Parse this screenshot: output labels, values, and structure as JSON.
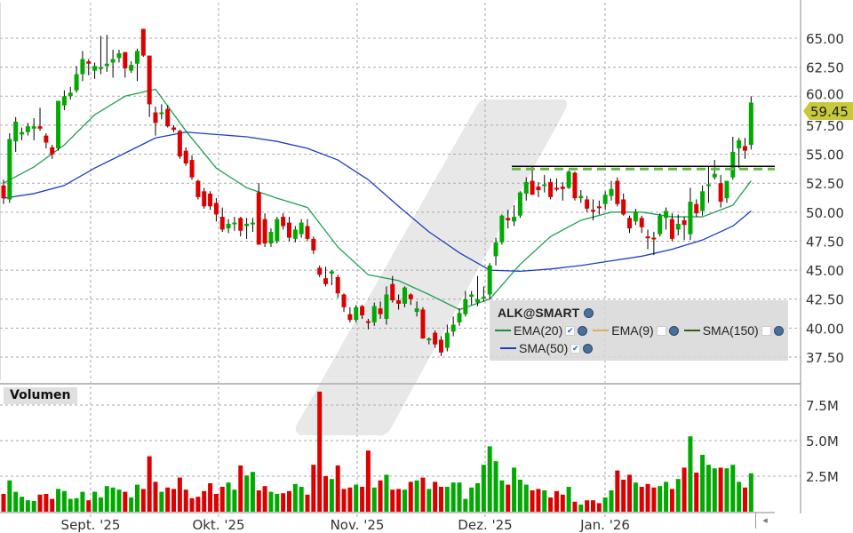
{
  "chart_data": {
    "type": "candlestick",
    "symbol": "ALK@SMART",
    "last_price_label": "59.45",
    "price_axis": {
      "ticks": [
        "37.50",
        "40.00",
        "42.50",
        "45.00",
        "47.50",
        "50.00",
        "52.50",
        "55.00",
        "57.50",
        "60.00",
        "62.50",
        "65.00"
      ],
      "range": [
        36.5,
        66.5
      ]
    },
    "volume_axis": {
      "label": "Volumen",
      "ticks": [
        "2.5M",
        "5.0M",
        "7.5M"
      ],
      "tick_values": [
        2.5,
        5.0,
        7.5
      ]
    },
    "x_tick_labels": [
      "Sept. '25",
      "Okt. '25",
      "Nov. '25",
      "Dez. '25",
      "Jan. '26"
    ],
    "grid": true,
    "colors": {
      "up": "#00aa00",
      "down": "#dd0000",
      "ema20": "#22a050",
      "sma50": "#1a3fc0",
      "ema9": "#e0b050",
      "sma150": "#3a5a10",
      "resistance": "#66bb44",
      "badge": "#c8c83c"
    },
    "ohlc": [
      [
        52.3,
        52.8,
        50.7,
        51.2
      ],
      [
        51.1,
        56.8,
        50.8,
        56.3
      ],
      [
        56.1,
        58.2,
        55.2,
        57.8
      ],
      [
        56.7,
        57.3,
        56.2,
        56.9
      ],
      [
        56.9,
        57.7,
        56.6,
        57.4
      ],
      [
        57.2,
        58.1,
        56.2,
        57.4
      ],
      [
        57.4,
        59.0,
        57.0,
        57.2
      ],
      [
        56.6,
        56.8,
        55.5,
        56.0
      ],
      [
        55.6,
        55.8,
        54.6,
        55.0
      ],
      [
        55.5,
        59.6,
        55.3,
        59.6
      ],
      [
        59.2,
        60.5,
        58.8,
        60.0
      ],
      [
        60.0,
        60.8,
        59.7,
        60.3
      ],
      [
        60.5,
        62.6,
        60.3,
        61.9
      ],
      [
        61.9,
        63.9,
        61.3,
        63.2
      ],
      [
        63.0,
        63.2,
        61.8,
        62.8
      ],
      [
        62.2,
        62.9,
        61.5,
        62.6
      ],
      [
        62.4,
        65.2,
        61.9,
        62.5
      ],
      [
        62.6,
        65.3,
        62.1,
        62.8
      ],
      [
        62.9,
        64.0,
        61.6,
        63.2
      ],
      [
        63.3,
        64.0,
        62.9,
        63.7
      ],
      [
        63.8,
        63.8,
        61.6,
        62.4
      ],
      [
        62.2,
        63.0,
        62.0,
        62.7
      ],
      [
        62.8,
        64.1,
        61.3,
        63.9
      ],
      [
        65.8,
        65.8,
        63.4,
        63.5
      ],
      [
        63.5,
        63.5,
        58.2,
        59.3
      ],
      [
        58.6,
        59.1,
        56.6,
        57.7
      ],
      [
        58.5,
        59.3,
        58.0,
        58.6
      ],
      [
        58.9,
        59.2,
        57.3,
        57.4
      ],
      [
        57.3,
        57.5,
        56.9,
        57.1
      ],
      [
        57.0,
        57.1,
        54.6,
        54.8
      ],
      [
        55.3,
        55.6,
        54.0,
        54.2
      ],
      [
        54.5,
        54.9,
        52.8,
        53.0
      ],
      [
        52.7,
        52.8,
        51.1,
        51.3
      ],
      [
        51.8,
        52.1,
        50.3,
        50.5
      ],
      [
        51.6,
        51.8,
        50.2,
        50.5
      ],
      [
        50.8,
        51.2,
        49.2,
        49.8
      ],
      [
        49.6,
        50.4,
        48.3,
        48.5
      ],
      [
        48.6,
        49.4,
        48.2,
        49.0
      ],
      [
        49.0,
        49.6,
        48.4,
        49.1
      ],
      [
        49.5,
        49.6,
        47.9,
        48.4
      ],
      [
        48.8,
        49.5,
        47.7,
        49.0
      ],
      [
        49.0,
        49.5,
        48.3,
        49.1
      ],
      [
        51.7,
        52.5,
        47.2,
        47.2
      ],
      [
        49.4,
        49.9,
        47.0,
        47.3
      ],
      [
        47.3,
        48.6,
        47.0,
        48.3
      ],
      [
        47.5,
        49.6,
        47.3,
        49.4
      ],
      [
        49.6,
        49.9,
        48.5,
        48.8
      ],
      [
        49.1,
        49.6,
        47.5,
        47.8
      ],
      [
        47.7,
        48.8,
        47.4,
        48.5
      ],
      [
        48.1,
        49.4,
        47.8,
        49.1
      ],
      [
        48.8,
        49.4,
        47.5,
        47.7
      ],
      [
        47.7,
        47.9,
        46.4,
        46.7
      ],
      [
        45.2,
        45.4,
        44.4,
        44.6
      ],
      [
        44.3,
        45.3,
        43.6,
        43.8
      ],
      [
        44.7,
        45.0,
        43.7,
        44.9
      ],
      [
        44.4,
        44.6,
        42.6,
        43.0
      ],
      [
        42.9,
        43.0,
        41.4,
        41.8
      ],
      [
        41.2,
        41.8,
        40.5,
        40.7
      ],
      [
        40.7,
        42.0,
        40.5,
        41.8
      ],
      [
        41.9,
        42.0,
        40.8,
        41.1
      ],
      [
        40.6,
        40.8,
        39.9,
        40.5
      ],
      [
        40.5,
        42.2,
        40.2,
        41.9
      ],
      [
        41.7,
        42.3,
        40.8,
        41.2
      ],
      [
        40.8,
        43.6,
        40.3,
        42.9
      ],
      [
        43.8,
        44.5,
        42.2,
        42.4
      ],
      [
        42.4,
        42.9,
        41.6,
        42.1
      ],
      [
        42.1,
        43.6,
        41.8,
        43.5
      ],
      [
        42.9,
        43.0,
        42.0,
        42.5
      ],
      [
        41.4,
        42.3,
        41.0,
        41.7
      ],
      [
        41.6,
        41.8,
        39.1,
        39.1
      ],
      [
        39.0,
        39.2,
        38.6,
        39.1
      ],
      [
        39.6,
        39.8,
        38.3,
        38.6
      ],
      [
        39.0,
        39.3,
        37.6,
        37.9
      ],
      [
        38.3,
        40.3,
        38.0,
        39.6
      ],
      [
        39.7,
        41.0,
        39.3,
        40.3
      ],
      [
        40.5,
        41.7,
        40.2,
        41.3
      ],
      [
        41.2,
        43.2,
        41.0,
        42.5
      ],
      [
        42.7,
        43.2,
        42.0,
        42.9
      ],
      [
        42.2,
        44.5,
        41.9,
        42.5
      ],
      [
        42.6,
        43.6,
        42.3,
        42.7
      ],
      [
        42.9,
        45.6,
        42.5,
        45.4
      ],
      [
        46.2,
        47.8,
        45.4,
        47.4
      ],
      [
        47.4,
        49.8,
        47.2,
        49.7
      ],
      [
        49.5,
        50.2,
        48.6,
        49.3
      ],
      [
        49.2,
        50.6,
        48.8,
        49.6
      ],
      [
        49.7,
        51.8,
        49.5,
        51.7
      ],
      [
        51.6,
        53.0,
        51.0,
        52.6
      ],
      [
        52.7,
        53.9,
        51.5,
        51.5
      ],
      [
        52.2,
        52.6,
        51.3,
        51.9
      ],
      [
        52.3,
        53.2,
        51.7,
        52.4
      ],
      [
        52.6,
        52.9,
        51.1,
        51.3
      ],
      [
        52.1,
        52.9,
        51.8,
        52.0
      ],
      [
        52.2,
        52.6,
        51.0,
        52.0
      ],
      [
        52.1,
        53.6,
        52.0,
        53.5
      ],
      [
        53.4,
        53.5,
        51.0,
        51.2
      ],
      [
        51.2,
        51.9,
        50.8,
        51.4
      ],
      [
        51.1,
        51.4,
        50.0,
        50.3
      ],
      [
        50.2,
        51.1,
        49.3,
        50.1
      ],
      [
        50.5,
        51.0,
        49.8,
        50.4
      ],
      [
        50.7,
        51.8,
        50.2,
        51.5
      ],
      [
        51.4,
        52.7,
        51.0,
        52.0
      ],
      [
        52.7,
        53.0,
        50.5,
        50.7
      ],
      [
        51.1,
        51.6,
        49.7,
        49.8
      ],
      [
        49.5,
        49.7,
        48.2,
        48.6
      ],
      [
        49.2,
        50.3,
        48.9,
        50.0
      ],
      [
        49.5,
        49.7,
        48.2,
        48.7
      ],
      [
        47.9,
        48.5,
        46.8,
        47.8
      ],
      [
        47.8,
        48.3,
        46.3,
        47.7
      ],
      [
        48.1,
        49.9,
        47.9,
        49.7
      ],
      [
        49.5,
        50.4,
        48.5,
        50.1
      ],
      [
        49.4,
        49.9,
        47.5,
        47.7
      ],
      [
        48.5,
        49.8,
        48.0,
        49.0
      ],
      [
        49.3,
        49.6,
        47.6,
        48.9
      ],
      [
        48.1,
        52.1,
        47.6,
        50.9
      ],
      [
        50.7,
        51.1,
        49.6,
        49.9
      ],
      [
        50.1,
        52.3,
        49.7,
        51.8
      ],
      [
        52.3,
        53.9,
        50.8,
        52.4
      ],
      [
        53.0,
        54.5,
        52.8,
        53.3
      ],
      [
        52.5,
        53.2,
        50.4,
        50.9
      ],
      [
        51.2,
        52.7,
        50.8,
        52.7
      ],
      [
        53.0,
        56.5,
        52.8,
        55.2
      ],
      [
        55.5,
        56.4,
        53.8,
        56.2
      ],
      [
        55.7,
        56.4,
        54.6,
        55.3
      ],
      [
        55.8,
        60.0,
        55.4,
        59.45
      ]
    ],
    "volume_millions": [
      1.25,
      2.2,
      1.4,
      1.05,
      0.8,
      0.75,
      1.2,
      1.25,
      0.9,
      1.6,
      1.45,
      0.9,
      0.95,
      1.4,
      0.8,
      1.4,
      1.0,
      1.8,
      1.7,
      1.55,
      1.4,
      1.0,
      1.9,
      1.6,
      3.9,
      2.1,
      1.4,
      1.7,
      1.6,
      2.4,
      1.55,
      0.95,
      1.05,
      1.45,
      2.0,
      1.25,
      1.75,
      2.05,
      1.55,
      3.25,
      2.55,
      2.8,
      1.5,
      1.8,
      1.4,
      1.25,
      1.3,
      1.45,
      1.95,
      1.75,
      1.2,
      3.3,
      8.45,
      2.5,
      2.3,
      3.25,
      1.6,
      1.7,
      1.9,
      1.75,
      4.3,
      1.7,
      2.2,
      2.6,
      1.55,
      1.6,
      1.55,
      2.1,
      2.2,
      2.4,
      1.6,
      2.1,
      1.75,
      1.75,
      2.05,
      2.05,
      0.9,
      1.7,
      2.0,
      3.3,
      4.6,
      3.55,
      2.2,
      1.9,
      3.1,
      2.25,
      1.9,
      1.5,
      1.6,
      1.5,
      1.0,
      1.45,
      1.2,
      1.75,
      0.7,
      0.5,
      0.8,
      0.8,
      0.6,
      1.0,
      1.5,
      2.9,
      2.25,
      2.6,
      2.05,
      1.75,
      1.95,
      1.7,
      1.8,
      2.1,
      1.6,
      2.3,
      3.1,
      5.3,
      2.75,
      4.0,
      3.3,
      3.05,
      3.1,
      3.05,
      3.3,
      2.1,
      1.7,
      2.7
    ],
    "ema20_sampled_every_5": [
      52.5,
      53.9,
      55.8,
      58.4,
      60.0,
      60.6,
      57.0,
      53.8,
      52.1,
      51.2,
      50.4,
      47.0,
      44.6,
      44.1,
      42.9,
      41.6,
      42.5,
      45.5,
      47.9,
      49.3,
      50.0,
      50.0,
      49.6,
      49.6,
      50.6,
      52.7
    ],
    "sma50_sampled_every_5": [
      51.2,
      51.6,
      52.3,
      53.8,
      55.1,
      56.4,
      56.9,
      56.7,
      56.5,
      56.1,
      55.5,
      54.5,
      52.8,
      50.5,
      48.3,
      46.5,
      45.0,
      44.9,
      45.1,
      45.4,
      45.8,
      46.2,
      46.8,
      47.6,
      48.8,
      50.1
    ],
    "resistance_level": 53.8,
    "legend": {
      "title": "ALK@SMART",
      "items": [
        {
          "label": "EMA(20)",
          "checked": true
        },
        {
          "label": "EMA(9)",
          "checked": false
        },
        {
          "label": "SMA(150)",
          "checked": false
        },
        {
          "label": "SMA(50)",
          "checked": true
        }
      ]
    }
  },
  "nav": {
    "scroll_icon": "◂"
  }
}
